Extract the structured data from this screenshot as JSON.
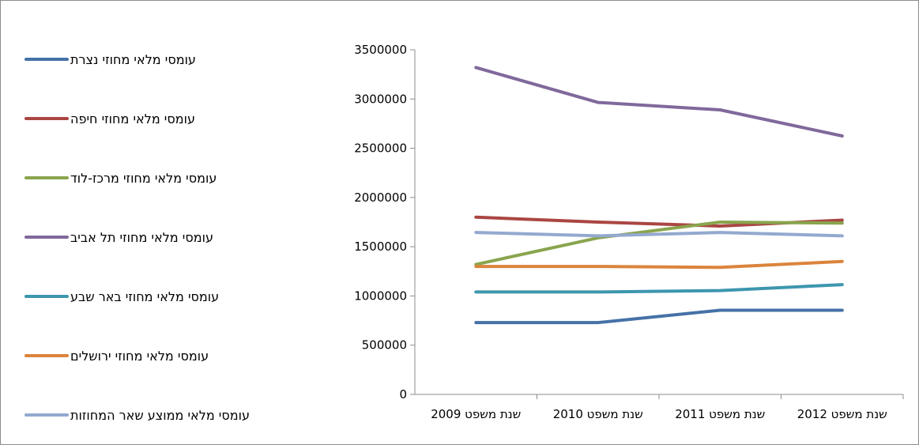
{
  "chart_data": {
    "type": "line",
    "categories": [
      "שנת משפט 2009",
      "שנת משפט 2010",
      "שנת משפט 2011",
      "שנת משפט 2012"
    ],
    "ylim": [
      0,
      3500000
    ],
    "yticks": [
      0,
      500000,
      1000000,
      1500000,
      2000000,
      2500000,
      3000000,
      3500000
    ],
    "ytick_labels": [
      "0",
      "500000",
      "1000000",
      "1500000",
      "2000000",
      "2500000",
      "3000000",
      "3500000"
    ],
    "grid": false,
    "legend_position": "left",
    "series": [
      {
        "name": "עומסי מלאי מחוזי נצרת",
        "color": "#4572A7",
        "values": [
          730000,
          730000,
          855000,
          855000
        ]
      },
      {
        "name": "עומסי מלאי מחוזי חיפה",
        "color": "#AA4643",
        "values": [
          1800000,
          1750000,
          1710000,
          1770000
        ]
      },
      {
        "name": "עומסי מלאי מחוזי מרכז-לוד",
        "color": "#89A54E",
        "values": [
          1320000,
          1590000,
          1750000,
          1740000
        ]
      },
      {
        "name": "עומסי מלאי מחוזי תל אביב",
        "color": "#80699B",
        "values": [
          3320000,
          2965000,
          2890000,
          2625000
        ]
      },
      {
        "name": "עומסי מלאי מחוזי באר שבע",
        "color": "#3D96AE",
        "values": [
          1040000,
          1040000,
          1055000,
          1115000
        ]
      },
      {
        "name": "עומסי מלאי מחוזי ירושלים",
        "color": "#DB843D",
        "values": [
          1300000,
          1300000,
          1290000,
          1350000
        ]
      },
      {
        "name": "עומסי מלאי ממוצע שאר המחוזות",
        "color": "#93A9CF",
        "values": [
          1645000,
          1610000,
          1645000,
          1610000
        ]
      }
    ]
  }
}
